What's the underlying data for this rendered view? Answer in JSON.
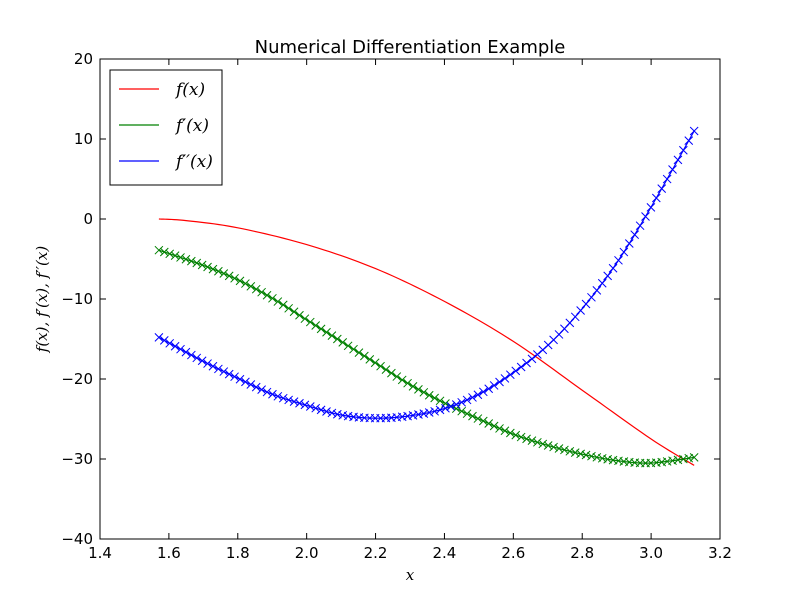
{
  "chart_data": {
    "type": "line",
    "title": "Numerical Differentiation Example",
    "xlabel": "x",
    "ylabel": "f(x), f′(x), f′′(x)",
    "xlim": [
      1.4,
      3.2
    ],
    "ylim": [
      -40,
      20
    ],
    "xticks": [
      1.4,
      1.6,
      1.8,
      2.0,
      2.2,
      2.4,
      2.6,
      2.8,
      3.0,
      3.2
    ],
    "xtick_labels": [
      "1.4",
      "1.6",
      "1.8",
      "2.0",
      "2.2",
      "2.4",
      "2.6",
      "2.8",
      "3.0",
      "3.2"
    ],
    "yticks": [
      20,
      10,
      0,
      -10,
      -20,
      -30,
      -40
    ],
    "ytick_labels": [
      "20",
      "10",
      "0",
      "−10",
      "−20",
      "−30",
      "−40"
    ],
    "grid": false,
    "legend_position": "top-left",
    "series": [
      {
        "name": "f(x)",
        "color": "#ff0000",
        "marker": "none",
        "x": [
          1.571,
          1.65,
          1.8,
          2.0,
          2.2,
          2.4,
          2.6,
          2.8,
          3.0,
          3.125
        ],
        "y": [
          0,
          -0.2,
          -1.1,
          -3.2,
          -6.2,
          -10.3,
          -15.3,
          -21.4,
          -27.5,
          -30.8
        ]
      },
      {
        "name": "f′(x)",
        "color": "#008000",
        "marker": "x",
        "x": [
          1.571,
          1.7,
          1.8,
          1.9,
          2.0,
          2.1,
          2.2,
          2.3,
          2.4,
          2.5,
          2.6,
          2.7,
          2.8,
          2.9,
          3.0,
          3.125
        ],
        "y": [
          -3.9,
          -5.8,
          -7.6,
          -9.9,
          -12.6,
          -15.3,
          -18.0,
          -20.7,
          -23.0,
          -25.0,
          -26.9,
          -28.3,
          -29.4,
          -30.2,
          -30.5,
          -29.8
        ]
      },
      {
        "name": "f′′(x)",
        "color": "#0000ff",
        "marker": "x",
        "x": [
          1.571,
          1.7,
          1.8,
          1.9,
          2.0,
          2.1,
          2.2,
          2.3,
          2.4,
          2.5,
          2.6,
          2.7,
          2.8,
          2.9,
          3.0,
          3.125
        ],
        "y": [
          -14.8,
          -17.8,
          -19.9,
          -21.9,
          -23.3,
          -24.5,
          -24.9,
          -24.6,
          -23.7,
          -21.9,
          -19.2,
          -15.8,
          -11.2,
          -5.5,
          1.5,
          11.0
        ]
      }
    ]
  }
}
